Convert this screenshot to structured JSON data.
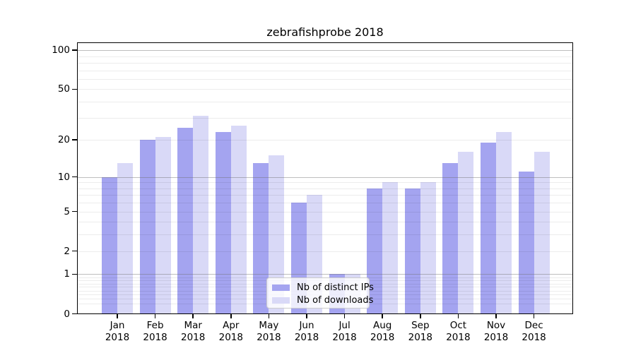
{
  "chart_data": {
    "type": "bar",
    "title": "zebrafishprobe 2018",
    "categories": [
      "Jan",
      "Feb",
      "Mar",
      "Apr",
      "May",
      "Jun",
      "Jul",
      "Aug",
      "Sep",
      "Oct",
      "Nov",
      "Dec"
    ],
    "x_year_label": "2018",
    "series": [
      {
        "name": "Nb of distinct IPs",
        "color": "#a4a4f0",
        "values": [
          10,
          20,
          25,
          23,
          13,
          6,
          1,
          8,
          8,
          13,
          19,
          11
        ]
      },
      {
        "name": "Nb of downloads",
        "color": "#d9d9f7",
        "values": [
          13,
          21,
          31,
          26,
          15,
          7,
          1,
          9,
          9,
          16,
          23,
          16
        ]
      }
    ],
    "yscale": "log1p",
    "ylim": [
      0,
      115
    ],
    "yticks": [
      100,
      50,
      20,
      10,
      5,
      2,
      1,
      0
    ],
    "decade_gridlines": [
      1,
      10,
      100
    ],
    "minor_gridlines": [
      0.2,
      0.3,
      0.4,
      0.5,
      0.6,
      0.7,
      0.8,
      0.9,
      3,
      4,
      6,
      7,
      8,
      9,
      30,
      40,
      60,
      70,
      80,
      90
    ],
    "grid": true,
    "legend_position": "lower center",
    "colors": {
      "background": "#ffffff",
      "spine": "#000000",
      "decade_grid": "#b5b5b5",
      "minor_grid": "#ececec",
      "text": "#000000",
      "legend_border": "#cccccc"
    }
  }
}
